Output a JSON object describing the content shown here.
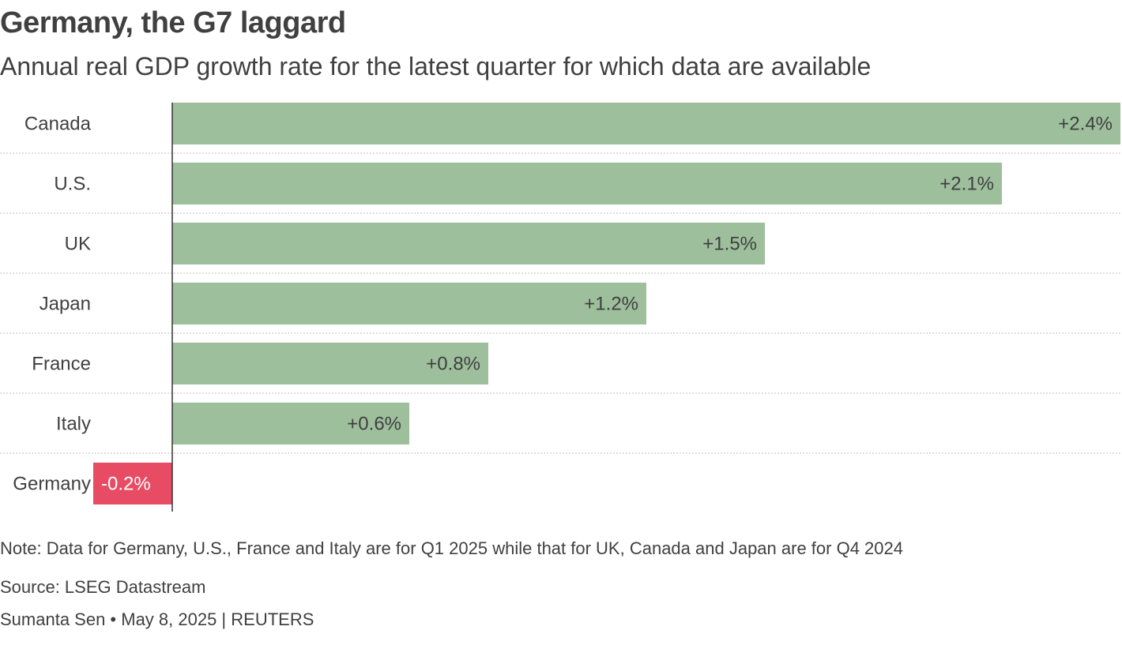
{
  "title": "Germany, the G7 laggard",
  "subtitle": "Annual real GDP growth rate for the latest quarter for which data are available",
  "note": "Note: Data for Germany, U.S., France and Italy are for Q1 2025 while that for UK, Canada and Japan are for Q4 2024",
  "source": "Source: LSEG Datastream",
  "byline": "Sumanta Sen • May 8, 2025 | REUTERS",
  "colors": {
    "positive": "#9dbf9c",
    "negative": "#e74c64",
    "text": "#404040",
    "axis": "#333333",
    "grid": "#cccccc"
  },
  "chart_data": {
    "type": "bar",
    "orientation": "horizontal",
    "categories": [
      "Canada",
      "U.S.",
      "UK",
      "Japan",
      "France",
      "Italy",
      "Germany"
    ],
    "values": [
      2.4,
      2.1,
      1.5,
      1.2,
      0.8,
      0.6,
      -0.2
    ],
    "data_labels": [
      "+2.4%",
      "+2.1%",
      "+1.5%",
      "+1.2%",
      "+0.8%",
      "+0.6%",
      "-0.2%"
    ],
    "xlim": [
      -0.2,
      2.4
    ],
    "grid": "dotted row separators"
  }
}
